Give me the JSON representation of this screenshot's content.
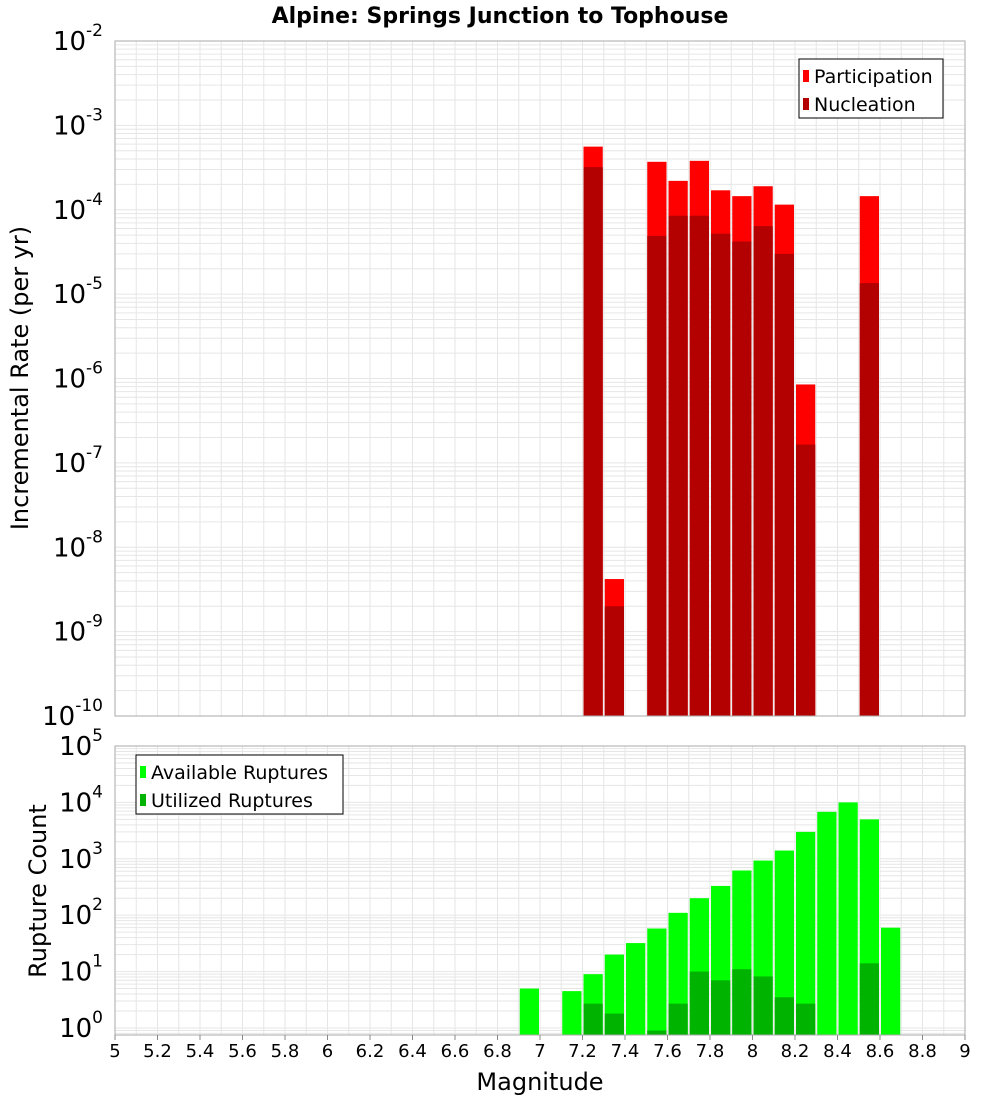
{
  "colors": {
    "participation": "#ff0000",
    "nucleation": "#b30000",
    "available": "#00ff00",
    "utilized": "#00b300",
    "grid": "#e6e6e6",
    "frame": "#aaaaaa"
  },
  "chart_data": [
    {
      "type": "bar",
      "title": "Alpine: Springs Junction to Tophouse",
      "xlabel": "",
      "ylabel": "Incremental Rate (per yr)",
      "yscale": "log",
      "ylim": [
        1e-10,
        0.01
      ],
      "xlim": [
        5,
        9
      ],
      "grid": true,
      "legend_position": "top-right",
      "y_tick_labels": [
        {
          "base": "10",
          "exp": "-10"
        },
        {
          "base": "10",
          "exp": "-9"
        },
        {
          "base": "10",
          "exp": "-8"
        },
        {
          "base": "10",
          "exp": "-7"
        },
        {
          "base": "10",
          "exp": "-6"
        },
        {
          "base": "10",
          "exp": "-5"
        },
        {
          "base": "10",
          "exp": "-4"
        },
        {
          "base": "10",
          "exp": "-3"
        },
        {
          "base": "10",
          "exp": "-2"
        }
      ],
      "series": [
        {
          "name": "Participation",
          "x": [
            7.25,
            7.35,
            7.55,
            7.65,
            7.75,
            7.85,
            7.95,
            8.05,
            8.15,
            8.25,
            8.55
          ],
          "values": [
            0.00056,
            4.2e-09,
            0.00037,
            0.00022,
            0.00038,
            0.00017,
            0.000145,
            0.00019,
            0.000115,
            8.5e-07,
            0.000145
          ]
        },
        {
          "name": "Nucleation",
          "x": [
            7.25,
            7.35,
            7.55,
            7.65,
            7.75,
            7.85,
            7.95,
            8.05,
            8.15,
            8.25,
            8.55
          ],
          "values": [
            0.00032,
            2e-09,
            4.9e-05,
            8.5e-05,
            8.5e-05,
            5.2e-05,
            4.2e-05,
            6.4e-05,
            3e-05,
            1.65e-07,
            1.35e-05
          ]
        }
      ]
    },
    {
      "type": "bar",
      "title": "",
      "xlabel": "Magnitude",
      "ylabel": "Rupture Count",
      "yscale": "log",
      "ylim": [
        0.75,
        100000.0
      ],
      "xlim": [
        5,
        9
      ],
      "grid": true,
      "legend_position": "top-left",
      "y_tick_labels": [
        {
          "base": "10",
          "exp": "0"
        },
        {
          "base": "10",
          "exp": "1"
        },
        {
          "base": "10",
          "exp": "2"
        },
        {
          "base": "10",
          "exp": "3"
        },
        {
          "base": "10",
          "exp": "4"
        },
        {
          "base": "10",
          "exp": "5"
        }
      ],
      "x_tick_labels": [
        "5",
        "5.2",
        "5.4",
        "5.6",
        "5.8",
        "6",
        "6.2",
        "6.4",
        "6.6",
        "6.8",
        "7",
        "7.2",
        "7.4",
        "7.6",
        "7.8",
        "8",
        "8.2",
        "8.4",
        "8.6",
        "8.8",
        "9"
      ],
      "series": [
        {
          "name": "Available Ruptures",
          "x": [
            6.95,
            7.15,
            7.25,
            7.35,
            7.45,
            7.55,
            7.65,
            7.75,
            7.85,
            7.95,
            8.05,
            8.15,
            8.25,
            8.35,
            8.45,
            8.55,
            8.65
          ],
          "values": [
            5,
            4.5,
            9,
            20,
            32,
            58,
            110,
            200,
            330,
            620,
            930,
            1400,
            3000,
            6800,
            10000,
            5000,
            60
          ]
        },
        {
          "name": "Utilized Ruptures",
          "x": [
            7.25,
            7.35,
            7.55,
            7.65,
            7.75,
            7.85,
            7.95,
            8.05,
            8.15,
            8.25,
            8.55
          ],
          "values": [
            2.7,
            1.8,
            0.9,
            2.7,
            10,
            7,
            11,
            8.2,
            3.5,
            2.7,
            14
          ]
        }
      ]
    }
  ]
}
